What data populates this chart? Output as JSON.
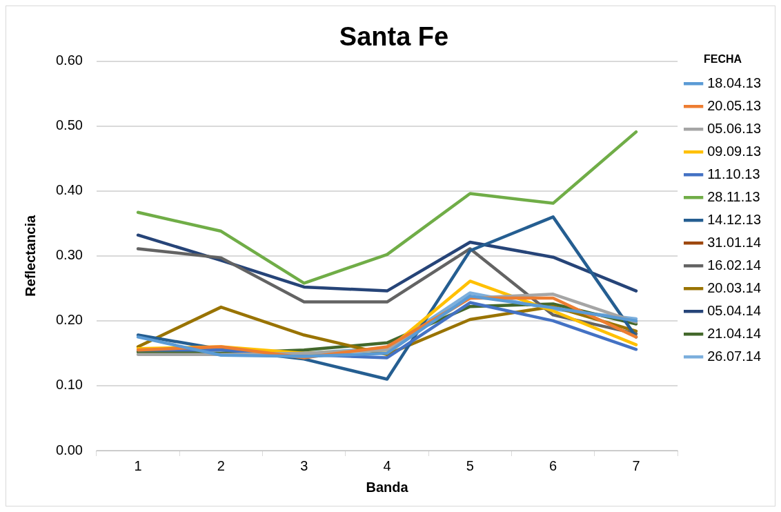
{
  "chart_data": {
    "type": "line",
    "title": "Santa Fe",
    "xlabel": "Banda",
    "ylabel": "Reflectancia",
    "legend_title": "FECHA",
    "categories": [
      "1",
      "2",
      "3",
      "4",
      "5",
      "6",
      "7"
    ],
    "ylim": [
      0,
      0.6
    ],
    "yticks": [
      {
        "value": 0,
        "label": "0.00"
      },
      {
        "value": 0.1,
        "label": "0.10"
      },
      {
        "value": 0.2,
        "label": "0.20"
      },
      {
        "value": 0.3,
        "label": "0.30"
      },
      {
        "value": 0.4,
        "label": "0.40"
      },
      {
        "value": 0.5,
        "label": "0.50"
      },
      {
        "value": 0.6,
        "label": "0.60"
      }
    ],
    "grid": "y",
    "legend": "right",
    "marker": "none",
    "line_style": "solid",
    "series": [
      {
        "name": "18.04.13",
        "color": "#5b9bd5",
        "values": [
          0.175,
          0.147,
          0.145,
          0.15,
          0.238,
          0.22,
          0.2
        ]
      },
      {
        "name": "20.05.13",
        "color": "#ed7d31",
        "values": [
          0.155,
          0.16,
          0.143,
          0.16,
          0.235,
          0.235,
          0.175
        ]
      },
      {
        "name": "05.06.13",
        "color": "#a5a5a5",
        "values": [
          0.148,
          0.148,
          0.15,
          0.155,
          0.235,
          0.241,
          0.198
        ]
      },
      {
        "name": "09.09.13",
        "color": "#ffc000",
        "values": [
          0.157,
          0.16,
          0.15,
          0.155,
          0.261,
          0.215,
          0.163
        ]
      },
      {
        "name": "11.10.13",
        "color": "#4472c4",
        "values": [
          0.155,
          0.155,
          0.148,
          0.143,
          0.228,
          0.2,
          0.156
        ]
      },
      {
        "name": "28.11.13",
        "color": "#70ad47",
        "values": [
          0.367,
          0.338,
          0.258,
          0.302,
          0.396,
          0.381,
          0.491
        ]
      },
      {
        "name": "14.12.13",
        "color": "#255e91",
        "values": [
          0.178,
          0.156,
          0.141,
          0.11,
          0.308,
          0.36,
          0.175
        ]
      },
      {
        "name": "31.01.14",
        "color": "#9e480e",
        "values": [
          null,
          null,
          null,
          null,
          null,
          null,
          null
        ]
      },
      {
        "name": "16.02.14",
        "color": "#636363",
        "values": [
          0.311,
          0.297,
          0.229,
          0.229,
          0.311,
          0.209,
          0.18
        ]
      },
      {
        "name": "20.03.14",
        "color": "#997300",
        "values": [
          0.16,
          0.221,
          0.178,
          0.148,
          0.202,
          0.222,
          0.184
        ]
      },
      {
        "name": "05.04.14",
        "color": "#264478",
        "values": [
          0.332,
          0.293,
          0.252,
          0.246,
          0.321,
          0.298,
          0.246
        ]
      },
      {
        "name": "21.04.14",
        "color": "#43682b",
        "values": [
          0.152,
          0.15,
          0.155,
          0.166,
          0.222,
          0.226,
          0.195
        ]
      },
      {
        "name": "26.07.14",
        "color": "#7cafdd",
        "values": [
          null,
          0.15,
          0.15,
          0.158,
          0.243,
          0.218,
          0.203
        ]
      }
    ]
  }
}
